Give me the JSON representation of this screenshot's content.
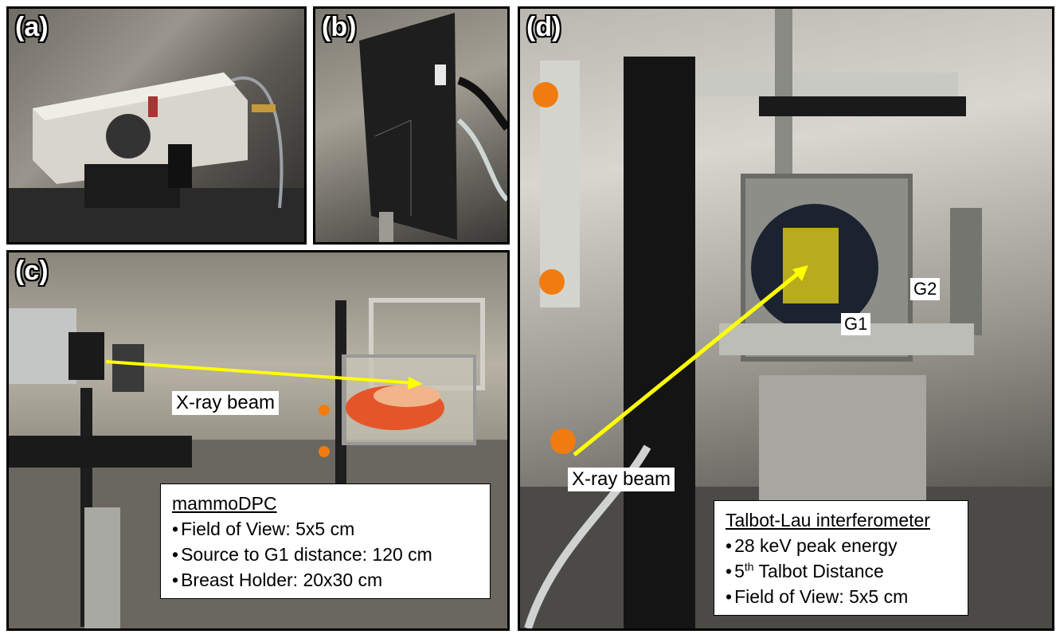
{
  "panels": {
    "a": {
      "label": "(a)"
    },
    "b": {
      "label": "(b)"
    },
    "c": {
      "label": "(c)",
      "beam_label": "X-ray beam",
      "info": {
        "title": "mammoDPC",
        "items": [
          "Field of View: 5x5 cm",
          "Source to G1 distance: 120 cm",
          "Breast Holder: 20x30 cm"
        ]
      }
    },
    "d": {
      "label": "(d)",
      "beam_label": "X-ray beam",
      "g1_label": "G1",
      "g2_label": "G2",
      "info": {
        "title": "Talbot-Lau interferometer",
        "item1": "28 keV peak energy",
        "item2_sup": "th",
        "item2_num": "5",
        "item2_rest": " Talbot Distance",
        "item3": "Field of View: 5x5 cm"
      }
    }
  },
  "colors": {
    "arrow": "#ffff00",
    "grating": "#b8ab1e",
    "knob": "#f07c10"
  }
}
